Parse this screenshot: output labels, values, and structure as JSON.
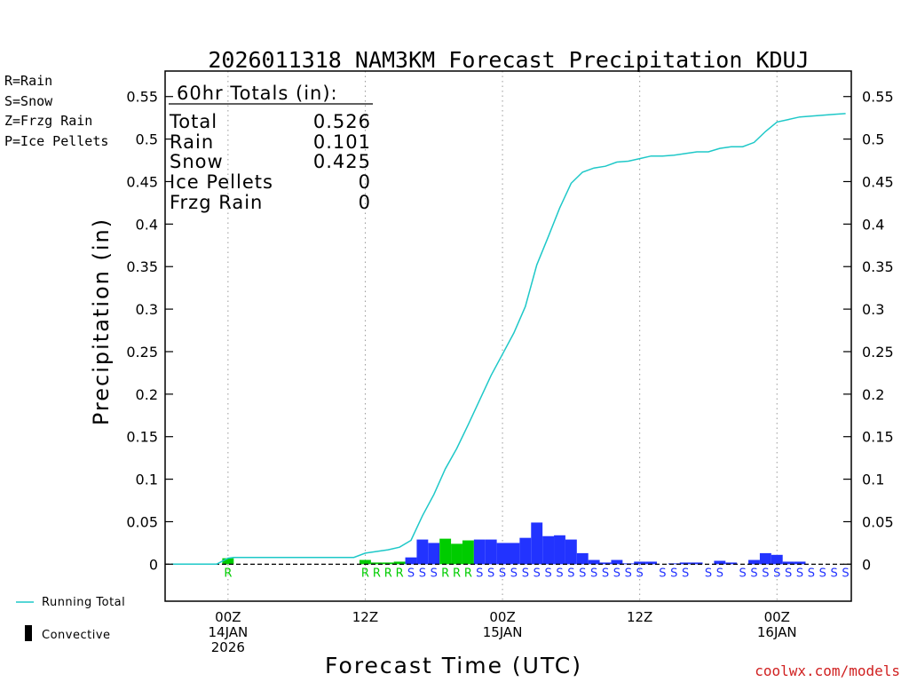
{
  "chart_data": {
    "type": "bar",
    "title": "2026011318 NAM3KM Forecast Precipitation KDUJ",
    "xlabel": "Forecast Time (UTC)",
    "ylabel": "Precipitation (in)",
    "ylim": [
      -0.0435,
      0.58
    ],
    "xlim_hours": [
      -5.5,
      54.5
    ],
    "yticks": [
      0,
      0.05,
      0.1,
      0.15,
      0.2,
      0.25,
      0.3,
      0.35,
      0.4,
      0.45,
      0.5,
      0.55
    ],
    "ytick_labels": [
      "0",
      "0.05",
      "0.1",
      "0.15",
      "0.2",
      "0.25",
      "0.3",
      "0.35",
      "0.4",
      "0.45",
      "0.5",
      "0.55"
    ],
    "xticks": [
      {
        "hour": 0,
        "lines": [
          "00Z",
          "14JAN",
          "2026"
        ]
      },
      {
        "hour": 12,
        "lines": [
          "12Z"
        ]
      },
      {
        "hour": 24,
        "lines": [
          "00Z",
          "15JAN"
        ]
      },
      {
        "hour": 36,
        "lines": [
          "12Z"
        ]
      },
      {
        "hour": 48,
        "lines": [
          "00Z",
          "16JAN"
        ]
      }
    ],
    "grid_hours": [
      0,
      12,
      24,
      36,
      48
    ],
    "ptype_colors": {
      "R": "#00cc00",
      "S": "#2233ff",
      "Z": "#ff8800",
      "P": "#ff1493"
    },
    "legend_ptype": [
      {
        "label": "R=Rain",
        "color": "#00cc00"
      },
      {
        "label": "S=Snow",
        "color": "#2233ff"
      },
      {
        "label": "Z=Frzg Rain",
        "color": "#f08a3c"
      },
      {
        "label": "P=Ice Pellets",
        "color": "#ff1493"
      }
    ],
    "totals": {
      "header": "60hr Totals (in):",
      "rows": [
        {
          "label": "Total",
          "value": "0.526"
        },
        {
          "label": "Rain",
          "value": "0.101"
        },
        {
          "label": "Snow",
          "value": "0.425"
        },
        {
          "label": "Ice Pellets",
          "value": "0"
        },
        {
          "label": "Frzg Rain",
          "value": "0"
        }
      ]
    },
    "bars": [
      {
        "hour": 0,
        "value": 0.007,
        "type": "R"
      },
      {
        "hour": 12,
        "value": 0.005,
        "type": "R"
      },
      {
        "hour": 13,
        "value": 0.002,
        "type": "R"
      },
      {
        "hour": 14,
        "value": 0.002,
        "type": "R"
      },
      {
        "hour": 15,
        "value": 0.003,
        "type": "R"
      },
      {
        "hour": 16,
        "value": 0.008,
        "type": "S"
      },
      {
        "hour": 17,
        "value": 0.029,
        "type": "S"
      },
      {
        "hour": 18,
        "value": 0.025,
        "type": "S"
      },
      {
        "hour": 19,
        "value": 0.03,
        "type": "R"
      },
      {
        "hour": 20,
        "value": 0.024,
        "type": "R"
      },
      {
        "hour": 21,
        "value": 0.028,
        "type": "R"
      },
      {
        "hour": 22,
        "value": 0.029,
        "type": "S"
      },
      {
        "hour": 23,
        "value": 0.029,
        "type": "S"
      },
      {
        "hour": 24,
        "value": 0.025,
        "type": "S"
      },
      {
        "hour": 25,
        "value": 0.025,
        "type": "S"
      },
      {
        "hour": 26,
        "value": 0.031,
        "type": "S"
      },
      {
        "hour": 27,
        "value": 0.049,
        "type": "S"
      },
      {
        "hour": 28,
        "value": 0.033,
        "type": "S"
      },
      {
        "hour": 29,
        "value": 0.034,
        "type": "S"
      },
      {
        "hour": 30,
        "value": 0.029,
        "type": "S"
      },
      {
        "hour": 31,
        "value": 0.013,
        "type": "S"
      },
      {
        "hour": 32,
        "value": 0.005,
        "type": "S"
      },
      {
        "hour": 33,
        "value": 0.002,
        "type": "S"
      },
      {
        "hour": 34,
        "value": 0.005,
        "type": "S"
      },
      {
        "hour": 35,
        "value": 0.001,
        "type": "S"
      },
      {
        "hour": 36,
        "value": 0.003,
        "type": "S"
      },
      {
        "hour": 37,
        "value": 0.003,
        "type": "S"
      },
      {
        "hour": 39,
        "value": 0.001,
        "type": "S"
      },
      {
        "hour": 40,
        "value": 0.002,
        "type": "S"
      },
      {
        "hour": 41,
        "value": 0.002,
        "type": "S"
      },
      {
        "hour": 43,
        "value": 0.004,
        "type": "S"
      },
      {
        "hour": 44,
        "value": 0.002,
        "type": "S"
      },
      {
        "hour": 46,
        "value": 0.005,
        "type": "S"
      },
      {
        "hour": 47,
        "value": 0.013,
        "type": "S"
      },
      {
        "hour": 48,
        "value": 0.011,
        "type": "S"
      },
      {
        "hour": 49,
        "value": 0.003,
        "type": "S"
      },
      {
        "hour": 50,
        "value": 0.003,
        "type": "S"
      }
    ],
    "ptype_marks": [
      {
        "hour": 0,
        "type": "R"
      },
      {
        "hour": 12,
        "type": "R"
      },
      {
        "hour": 13,
        "type": "R"
      },
      {
        "hour": 14,
        "type": "R"
      },
      {
        "hour": 15,
        "type": "R"
      },
      {
        "hour": 16,
        "type": "S"
      },
      {
        "hour": 17,
        "type": "S"
      },
      {
        "hour": 18,
        "type": "S"
      },
      {
        "hour": 19,
        "type": "R"
      },
      {
        "hour": 20,
        "type": "R"
      },
      {
        "hour": 21,
        "type": "R"
      },
      {
        "hour": 22,
        "type": "S"
      },
      {
        "hour": 23,
        "type": "S"
      },
      {
        "hour": 24,
        "type": "S"
      },
      {
        "hour": 25,
        "type": "S"
      },
      {
        "hour": 26,
        "type": "S"
      },
      {
        "hour": 27,
        "type": "S"
      },
      {
        "hour": 28,
        "type": "S"
      },
      {
        "hour": 29,
        "type": "S"
      },
      {
        "hour": 30,
        "type": "S"
      },
      {
        "hour": 31,
        "type": "S"
      },
      {
        "hour": 32,
        "type": "S"
      },
      {
        "hour": 33,
        "type": "S"
      },
      {
        "hour": 34,
        "type": "S"
      },
      {
        "hour": 35,
        "type": "S"
      },
      {
        "hour": 36,
        "type": "S"
      },
      {
        "hour": 38,
        "type": "S"
      },
      {
        "hour": 39,
        "type": "S"
      },
      {
        "hour": 40,
        "type": "S"
      },
      {
        "hour": 42,
        "type": "S"
      },
      {
        "hour": 43,
        "type": "S"
      },
      {
        "hour": 45,
        "type": "S"
      },
      {
        "hour": 46,
        "type": "S"
      },
      {
        "hour": 47,
        "type": "S"
      },
      {
        "hour": 48,
        "type": "S"
      },
      {
        "hour": 49,
        "type": "S"
      },
      {
        "hour": 50,
        "type": "S"
      },
      {
        "hour": 51,
        "type": "S"
      },
      {
        "hour": 52,
        "type": "S"
      },
      {
        "hour": 53,
        "type": "S"
      },
      {
        "hour": 54,
        "type": "S"
      }
    ],
    "running_total": {
      "label": "Running Total",
      "color": "#1ec8c8",
      "hours": [
        -5,
        -1,
        0,
        0.5,
        1,
        2,
        3,
        4,
        5,
        6,
        7,
        8,
        9,
        10,
        11,
        12,
        13,
        14,
        15,
        16,
        17,
        18,
        19,
        20,
        21,
        22,
        23,
        24,
        25,
        26,
        27,
        28,
        29,
        30,
        31,
        32,
        33,
        34,
        35,
        36,
        37,
        38,
        39,
        40,
        41,
        42,
        43,
        44,
        45,
        46,
        47,
        48,
        49,
        50,
        51,
        52,
        53,
        54
      ],
      "values": [
        0,
        0,
        0.007,
        0.008,
        0.008,
        0.008,
        0.008,
        0.008,
        0.008,
        0.008,
        0.008,
        0.008,
        0.008,
        0.008,
        0.008,
        0.013,
        0.015,
        0.017,
        0.02,
        0.028,
        0.057,
        0.082,
        0.112,
        0.136,
        0.164,
        0.193,
        0.222,
        0.247,
        0.272,
        0.303,
        0.352,
        0.385,
        0.419,
        0.448,
        0.461,
        0.466,
        0.468,
        0.473,
        0.474,
        0.477,
        0.48,
        0.48,
        0.481,
        0.483,
        0.485,
        0.485,
        0.489,
        0.491,
        0.491,
        0.496,
        0.509,
        0.52,
        0.523,
        0.526,
        0.527,
        0.528,
        0.529,
        0.53
      ]
    },
    "convective_label": "Convective",
    "credit": "coolwx.com/models"
  }
}
